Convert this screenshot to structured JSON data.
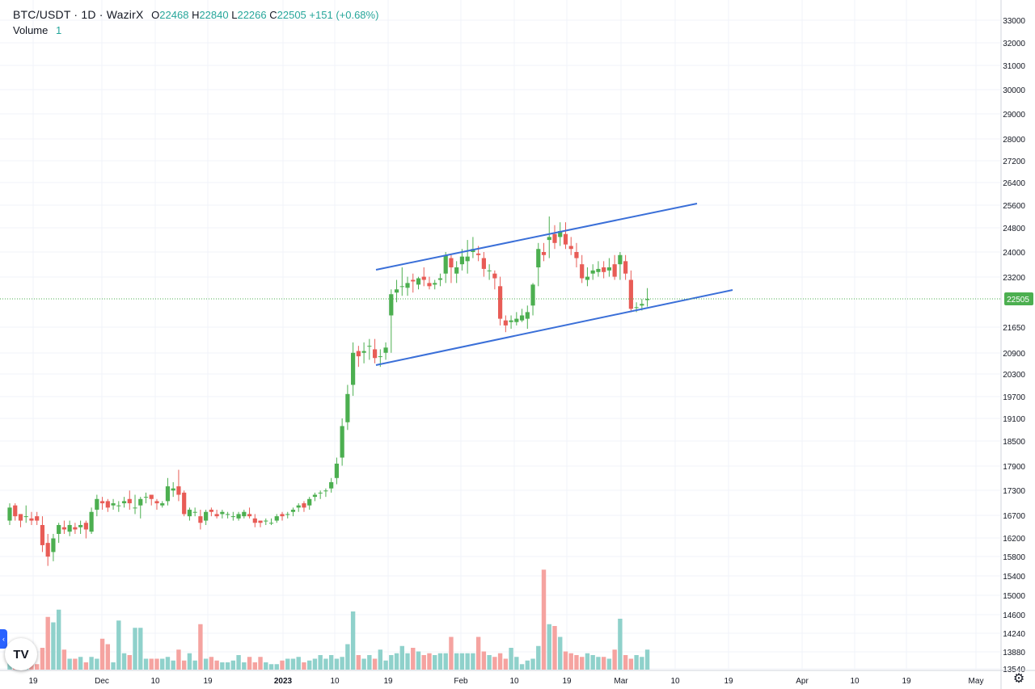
{
  "legend": {
    "symbol": "BTC/USDT · 1D · WazirX",
    "open_label": "O",
    "open": "22468",
    "high_label": "H",
    "high": "22840",
    "low_label": "L",
    "low": "22266",
    "close_label": "C",
    "close": "22505",
    "change": "+151 (+0.68%)",
    "volume_label": "Volume",
    "volume_value": "1"
  },
  "last_price_label": "22505",
  "colors": {
    "up": "#26a69a",
    "down": "#ef5350",
    "up_candle": "#4caf50",
    "down_candle": "#e85c56",
    "trendline": "#3a6fd8",
    "price_tag": "#4caf50"
  },
  "chart_data": {
    "type": "candlestick",
    "price_axis_ticks": [
      "33000",
      "32000",
      "31000",
      "30000",
      "29000",
      "28000",
      "27200",
      "26400",
      "25600",
      "24800",
      "24000",
      "23200",
      "22505",
      "21650",
      "20900",
      "20300",
      "19700",
      "19100",
      "18500",
      "17900",
      "17300",
      "16700",
      "16200",
      "15800",
      "15400",
      "15000",
      "14600",
      "14240",
      "13880",
      "13540"
    ],
    "time_axis_ticks": [
      "19",
      "Dec",
      "10",
      "19",
      "2023",
      "10",
      "19",
      "Feb",
      "10",
      "19",
      "Mar",
      "10",
      "19",
      "Apr",
      "10",
      "19",
      "May"
    ],
    "scale": "log",
    "candles": [
      [
        16700,
        16600,
        16900,
        17000,
        16500
      ],
      [
        16900,
        16950,
        16700,
        17000,
        16600
      ],
      [
        16900,
        16750,
        16600,
        16750,
        16450
      ],
      [
        16900,
        16700,
        16700,
        16950,
        16550
      ],
      [
        16700,
        16650,
        16600,
        16800,
        16500
      ],
      [
        16600,
        16700,
        16600,
        16800,
        16500
      ],
      [
        16600,
        16500,
        16050,
        16700,
        15900
      ],
      [
        16050,
        16100,
        15800,
        16300,
        15600
      ],
      [
        15800,
        15900,
        16200,
        16300,
        15700
      ],
      [
        16200,
        16300,
        16500,
        16550,
        16100
      ],
      [
        16500,
        16450,
        16400,
        16600,
        16300
      ],
      [
        16400,
        16350,
        16500,
        16600,
        16250
      ],
      [
        16500,
        16450,
        16400,
        16550,
        16300
      ],
      [
        16400,
        16450,
        16500,
        16600,
        16300
      ],
      [
        16500,
        16550,
        16400,
        16600,
        16200
      ],
      [
        16400,
        16350,
        16800,
        16900,
        16300
      ],
      [
        16800,
        16850,
        17100,
        17200,
        16700
      ],
      [
        17100,
        17050,
        17000,
        17150,
        16850
      ],
      [
        17000,
        17050,
        16900,
        17100,
        16800
      ],
      [
        16900,
        16950,
        17000,
        17100,
        16850
      ],
      [
        17000,
        16950,
        16950,
        17050,
        16800
      ],
      [
        16950,
        17000,
        17050,
        17150,
        16900
      ],
      [
        17050,
        17100,
        17000,
        17300,
        16850
      ],
      [
        17000,
        16900,
        16900,
        17200,
        16750
      ],
      [
        16900,
        16950,
        17100,
        17150,
        16650
      ],
      [
        17100,
        17150,
        17150,
        17250,
        17000
      ],
      [
        17150,
        17200,
        17100,
        17200,
        16950
      ],
      [
        17100,
        17050,
        17000,
        17100,
        16850
      ],
      [
        17000,
        16950,
        17000,
        17050,
        16900
      ],
      [
        17000,
        17050,
        17400,
        17600,
        16950
      ],
      [
        17400,
        17300,
        17350,
        17500,
        17150
      ],
      [
        17350,
        17400,
        17200,
        17800,
        17050
      ],
      [
        17200,
        17250,
        16750,
        17300,
        16700
      ],
      [
        16750,
        16700,
        16850,
        16900,
        16600
      ],
      [
        16850,
        16800,
        16800,
        16900,
        16700
      ],
      [
        16800,
        16700,
        16550,
        16850,
        16400
      ],
      [
        16550,
        16600,
        16800,
        16850,
        16500
      ],
      [
        16800,
        16850,
        16800,
        16900,
        16700
      ],
      [
        16800,
        16750,
        16700,
        16850,
        16650
      ],
      [
        16700,
        16750,
        16800,
        16850,
        16650
      ],
      [
        16800,
        16750,
        16750,
        16800,
        16650
      ],
      [
        16750,
        16700,
        16700,
        16800,
        16600
      ],
      [
        16700,
        16650,
        16750,
        16800,
        16600
      ],
      [
        16750,
        16700,
        16800,
        16850,
        16650
      ],
      [
        16800,
        16750,
        16700,
        16900,
        16650
      ],
      [
        16700,
        16650,
        16550,
        16750,
        16450
      ],
      [
        16550,
        16600,
        16550,
        16600,
        16450
      ],
      [
        16550,
        16600,
        16600,
        16650,
        16500
      ],
      [
        16600,
        16550,
        16550,
        16650,
        16500
      ],
      [
        16550,
        16600,
        16700,
        16750,
        16550
      ],
      [
        16700,
        16750,
        16700,
        16800,
        16600
      ],
      [
        16700,
        16750,
        16750,
        16800,
        16650
      ],
      [
        16750,
        16800,
        16850,
        16900,
        16700
      ],
      [
        16850,
        16900,
        16950,
        17000,
        16800
      ],
      [
        16950,
        17000,
        16900,
        17050,
        16800
      ],
      [
        16900,
        16950,
        17100,
        17150,
        16850
      ],
      [
        17100,
        17150,
        17200,
        17250,
        17050
      ],
      [
        17200,
        17250,
        17250,
        17300,
        17100
      ],
      [
        17250,
        17300,
        17300,
        17350,
        17150
      ],
      [
        17300,
        17350,
        17500,
        17600,
        17250
      ],
      [
        17500,
        17600,
        17950,
        18100,
        17450
      ],
      [
        17950,
        18100,
        18900,
        19100,
        17900
      ],
      [
        18900,
        19000,
        19750,
        20000,
        18800
      ],
      [
        19750,
        20000,
        20900,
        21200,
        19700
      ],
      [
        20900,
        20950,
        20800,
        21100,
        20500
      ],
      [
        20800,
        20900,
        20950,
        21200,
        20600
      ],
      [
        20950,
        21100,
        21100,
        21300,
        20700
      ],
      [
        21100,
        21000,
        20750,
        21300,
        20600
      ],
      [
        20750,
        20800,
        20800,
        21000,
        20500
      ],
      [
        20800,
        20900,
        21050,
        21200,
        20700
      ],
      [
        21050,
        22000,
        22650,
        22800,
        20900
      ],
      [
        22650,
        22700,
        22800,
        23100,
        22400
      ],
      [
        22800,
        22900,
        22900,
        23500,
        22600
      ],
      [
        22900,
        22850,
        23000,
        23200,
        22600
      ],
      [
        23000,
        23100,
        23050,
        23300,
        22700
      ],
      [
        23050,
        22950,
        23150,
        23200,
        22800
      ],
      [
        23150,
        23200,
        23100,
        23500,
        22900
      ],
      [
        23100,
        23000,
        22900,
        23200,
        22800
      ],
      [
        22900,
        22950,
        23000,
        23100,
        22800
      ],
      [
        23000,
        23100,
        23150,
        23300,
        22900
      ],
      [
        23150,
        23300,
        23900,
        24000,
        23000
      ],
      [
        23900,
        23800,
        23500,
        23900,
        23000
      ],
      [
        23500,
        23300,
        23500,
        23700,
        23000
      ],
      [
        23500,
        23600,
        23850,
        24100,
        23400
      ],
      [
        23850,
        23700,
        23850,
        24400,
        23300
      ],
      [
        23850,
        24000,
        24100,
        24500,
        23800
      ],
      [
        24100,
        23950,
        23900,
        24200,
        23700
      ],
      [
        23900,
        23800,
        23450,
        24000,
        23200
      ],
      [
        23450,
        23400,
        23400,
        23600,
        23100
      ],
      [
        23400,
        23300,
        23150,
        23400,
        22800
      ],
      [
        23150,
        22900,
        21900,
        23200,
        21700
      ],
      [
        21900,
        21850,
        21700,
        22000,
        21500
      ],
      [
        21700,
        21800,
        21850,
        22000,
        21600
      ],
      [
        21850,
        21800,
        21900,
        22100,
        21700
      ],
      [
        21900,
        21850,
        22000,
        22200,
        21800
      ],
      [
        22000,
        21900,
        22100,
        22300,
        21600
      ],
      [
        22100,
        22300,
        22950,
        23000,
        22000
      ],
      [
        22950,
        23500,
        24100,
        24300,
        22900
      ],
      [
        24100,
        24000,
        23900,
        24300,
        23700
      ],
      [
        23900,
        24400,
        24500,
        25200,
        23800
      ],
      [
        24500,
        24600,
        24300,
        24900,
        24100
      ],
      [
        24300,
        24500,
        24700,
        25000,
        24200
      ],
      [
        24700,
        24600,
        24250,
        25000,
        24100
      ],
      [
        24250,
        24200,
        24100,
        24500,
        23900
      ],
      [
        24100,
        24000,
        23800,
        24300,
        23500
      ],
      [
        23800,
        23600,
        23150,
        23900,
        23000
      ],
      [
        23150,
        23100,
        23200,
        23500,
        22900
      ],
      [
        23200,
        23300,
        23400,
        23600,
        23100
      ],
      [
        23400,
        23350,
        23450,
        23700,
        23200
      ],
      [
        23450,
        23500,
        23350,
        23700,
        23150
      ],
      [
        23350,
        23400,
        23500,
        23800,
        23200
      ],
      [
        23500,
        23600,
        23200,
        23900,
        23100
      ],
      [
        23200,
        23600,
        23900,
        24000,
        23100
      ],
      [
        23900,
        23700,
        23300,
        23900,
        23100
      ],
      [
        23300,
        23100,
        22200,
        23400,
        22100
      ],
      [
        22200,
        22250,
        22250,
        22400,
        22100
      ],
      [
        22250,
        22300,
        22350,
        22500,
        22150
      ],
      [
        22400,
        22468,
        22505,
        22840,
        22266
      ]
    ],
    "volume_relative": [
      12,
      8,
      7,
      11,
      4,
      3,
      12,
      29,
      26,
      33,
      11,
      6,
      6,
      7,
      4,
      7,
      6,
      17,
      14,
      4,
      27,
      9,
      8,
      23,
      23,
      6,
      6,
      6,
      6,
      7,
      5,
      11,
      5,
      9,
      5,
      25,
      6,
      7,
      5,
      4,
      4,
      5,
      8,
      4,
      7,
      4,
      7,
      4,
      3,
      3,
      5,
      6,
      6,
      7,
      4,
      5,
      6,
      8,
      6,
      8,
      6,
      7,
      14,
      32,
      8,
      6,
      8,
      6,
      11,
      5,
      8,
      9,
      13,
      9,
      12,
      10,
      8,
      9,
      8,
      9,
      9,
      18,
      9,
      9,
      9,
      9,
      18,
      10,
      8,
      7,
      9,
      6,
      12,
      7,
      3,
      5,
      6,
      13,
      55,
      25,
      24,
      18,
      10,
      9,
      8,
      7,
      9,
      8,
      7,
      7,
      6,
      11,
      28,
      8,
      6,
      8,
      7,
      11
    ]
  },
  "trendlines": [
    {
      "name": "channel-upper",
      "from": [
        465,
        334
      ],
      "to": [
        862,
        252
      ]
    },
    {
      "name": "channel-lower",
      "from": [
        465,
        452
      ],
      "to": [
        906,
        359
      ]
    }
  ]
}
